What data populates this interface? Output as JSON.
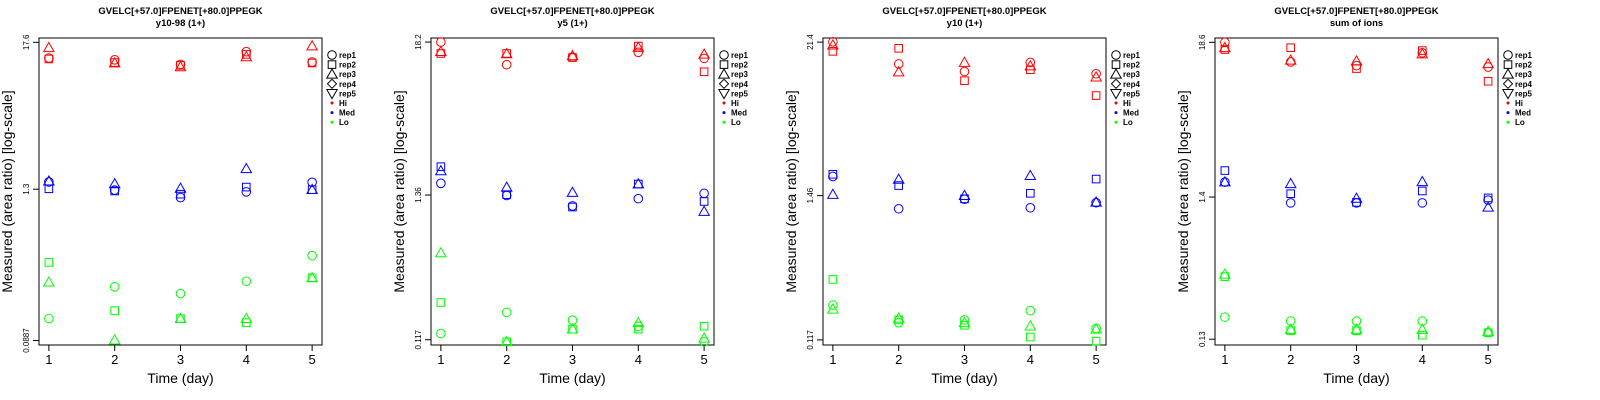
{
  "x_label": "Time (day)",
  "y_label": "Measured (area ratio) [log-scale]",
  "legend": {
    "shapes": [
      {
        "label": "rep1",
        "marker": "circle"
      },
      {
        "label": "rep2",
        "marker": "square"
      },
      {
        "label": "rep3",
        "marker": "triangle-up"
      },
      {
        "label": "rep4",
        "marker": "diamond"
      },
      {
        "label": "rep5",
        "marker": "triangle-down"
      }
    ],
    "levels": [
      {
        "label": "Hi",
        "color": "#ff0000"
      },
      {
        "label": "Med",
        "color": "#0000ff"
      },
      {
        "label": "Lo",
        "color": "#00ff00"
      }
    ]
  },
  "chart_data": [
    {
      "type": "scatter",
      "title": "GVELC[+57.0]FPENET[+80.0]PPEGK",
      "subtitle": "y10-98 (1+)",
      "xlabel": "Time (day)",
      "ylabel": "Measured (area ratio) [log-scale]",
      "x_ticks": [
        1,
        2,
        3,
        4,
        5
      ],
      "y_ticks": [
        {
          "value": 17.6,
          "label": "17.6"
        },
        {
          "value": 1.3,
          "label": "1.3"
        },
        {
          "value": 0.0887,
          "label": "0.0887"
        }
      ],
      "ylim": [
        0.082,
        19.0
      ],
      "xlim": [
        0.85,
        5.15
      ],
      "series": [
        {
          "name": "Hi rep1",
          "level": "Hi",
          "marker": "circle",
          "x": [
            1,
            2,
            3,
            4,
            5
          ],
          "y": [
            13.3,
            12.9,
            11.9,
            14.9,
            12.4
          ]
        },
        {
          "name": "Hi rep2",
          "level": "Hi",
          "marker": "square",
          "x": [
            1,
            2,
            3,
            4,
            5
          ],
          "y": [
            13.1,
            12.3,
            11.7,
            14.2,
            12.2
          ]
        },
        {
          "name": "Hi rep3",
          "level": "Hi",
          "marker": "triangle-up",
          "x": [
            1,
            2,
            3,
            4,
            5
          ],
          "y": [
            16.0,
            12.2,
            11.4,
            13.6,
            16.5
          ]
        },
        {
          "name": "Med rep1",
          "level": "Med",
          "marker": "circle",
          "x": [
            1,
            2,
            3,
            4,
            5
          ],
          "y": [
            1.48,
            1.28,
            1.12,
            1.24,
            1.47
          ]
        },
        {
          "name": "Med rep2",
          "level": "Med",
          "marker": "square",
          "x": [
            1,
            2,
            3,
            4,
            5
          ],
          "y": [
            1.31,
            1.26,
            1.19,
            1.35,
            1.29
          ]
        },
        {
          "name": "Med rep3",
          "level": "Med",
          "marker": "triangle-up",
          "x": [
            1,
            2,
            3,
            4,
            5
          ],
          "y": [
            1.5,
            1.43,
            1.32,
            1.87,
            1.29
          ]
        },
        {
          "name": "Lo rep1",
          "level": "Lo",
          "marker": "circle",
          "x": [
            1,
            2,
            3,
            4,
            5
          ],
          "y": [
            0.131,
            0.23,
            0.204,
            0.254,
            0.4
          ]
        },
        {
          "name": "Lo rep2",
          "level": "Lo",
          "marker": "square",
          "x": [
            1,
            2,
            3,
            4,
            5
          ],
          "y": [
            0.355,
            0.151,
            0.131,
            0.122,
            0.27
          ]
        },
        {
          "name": "Lo rep3",
          "level": "Lo",
          "marker": "triangle-up",
          "x": [
            1,
            2,
            3,
            4,
            5
          ],
          "y": [
            0.25,
            0.0895,
            0.131,
            0.131,
            0.27
          ]
        }
      ]
    },
    {
      "type": "scatter",
      "title": "GVELC[+57.0]FPENET[+80.0]PPEGK",
      "subtitle": "y5 (1+)",
      "xlabel": "Time (day)",
      "ylabel": "Measured (area ratio) [log-scale]",
      "x_ticks": [
        1,
        2,
        3,
        4,
        5
      ],
      "y_ticks": [
        {
          "value": 18.2,
          "label": "18.2"
        },
        {
          "value": 1.36,
          "label": "1.36"
        },
        {
          "value": 0.117,
          "label": "0.117"
        }
      ],
      "ylim": [
        0.107,
        19.5
      ],
      "xlim": [
        0.85,
        5.15
      ],
      "series": [
        {
          "name": "Hi rep1",
          "level": "Hi",
          "marker": "circle",
          "x": [
            1,
            2,
            3,
            4,
            5
          ],
          "y": [
            18.2,
            12.4,
            14.1,
            15.3,
            13.8
          ]
        },
        {
          "name": "Hi rep2",
          "level": "Hi",
          "marker": "square",
          "x": [
            1,
            2,
            3,
            4,
            5
          ],
          "y": [
            15.0,
            15.0,
            14.0,
            17.0,
            11.0
          ]
        },
        {
          "name": "Hi rep3",
          "level": "Hi",
          "marker": "triangle-up",
          "x": [
            1,
            2,
            3,
            4,
            5
          ],
          "y": [
            15.5,
            14.9,
            14.4,
            16.6,
            14.8
          ]
        },
        {
          "name": "Med rep1",
          "level": "Med",
          "marker": "circle",
          "x": [
            1,
            2,
            3,
            4,
            5
          ],
          "y": [
            1.66,
            1.35,
            1.13,
            1.28,
            1.4
          ]
        },
        {
          "name": "Med rep2",
          "level": "Med",
          "marker": "square",
          "x": [
            1,
            2,
            3,
            4,
            5
          ],
          "y": [
            2.2,
            1.37,
            1.11,
            1.64,
            1.22
          ]
        },
        {
          "name": "Med rep3",
          "level": "Med",
          "marker": "triangle-up",
          "x": [
            1,
            2,
            3,
            4,
            5
          ],
          "y": [
            2.05,
            1.55,
            1.42,
            1.64,
            1.03
          ]
        },
        {
          "name": "Lo rep1",
          "level": "Lo",
          "marker": "circle",
          "x": [
            1,
            2,
            3,
            4,
            5
          ],
          "y": [
            0.13,
            0.186,
            0.163,
            0.147,
            0.113
          ]
        },
        {
          "name": "Lo rep2",
          "level": "Lo",
          "marker": "square",
          "x": [
            1,
            2,
            3,
            4,
            5
          ],
          "y": [
            0.22,
            0.113,
            0.14,
            0.14,
            0.147
          ]
        },
        {
          "name": "Lo rep3",
          "level": "Lo",
          "marker": "triangle-up",
          "x": [
            1,
            2,
            3,
            4,
            5
          ],
          "y": [
            0.51,
            0.113,
            0.14,
            0.156,
            0.12
          ]
        }
      ]
    },
    {
      "type": "scatter",
      "title": "GVELC[+57.0]FPENET[+80.0]PPEGK",
      "subtitle": "y10 (1+)",
      "xlabel": "Time (day)",
      "ylabel": "Measured (area ratio) [log-scale]",
      "x_ticks": [
        1,
        2,
        3,
        4,
        5
      ],
      "y_ticks": [
        {
          "value": 21.4,
          "label": "21.4"
        },
        {
          "value": 1.46,
          "label": "1.46"
        },
        {
          "value": 0.117,
          "label": "0.117"
        }
      ],
      "ylim": [
        0.107,
        23.0
      ],
      "xlim": [
        0.85,
        5.15
      ],
      "series": [
        {
          "name": "Hi rep1",
          "level": "Hi",
          "marker": "circle",
          "x": [
            1,
            2,
            3,
            4,
            5
          ],
          "y": [
            21.5,
            14.6,
            12.8,
            15.0,
            12.3
          ]
        },
        {
          "name": "Hi rep2",
          "level": "Hi",
          "marker": "square",
          "x": [
            1,
            2,
            3,
            4,
            5
          ],
          "y": [
            18.2,
            19.2,
            10.9,
            13.2,
            8.4
          ]
        },
        {
          "name": "Hi rep3",
          "level": "Hi",
          "marker": "triangle-up",
          "x": [
            1,
            2,
            3,
            4,
            5
          ],
          "y": [
            20.3,
            12.7,
            15.0,
            14.1,
            11.6
          ]
        },
        {
          "name": "Med rep1",
          "level": "Med",
          "marker": "circle",
          "x": [
            1,
            2,
            3,
            4,
            5
          ],
          "y": [
            2.04,
            1.16,
            1.37,
            1.18,
            1.29
          ]
        },
        {
          "name": "Med rep2",
          "level": "Med",
          "marker": "square",
          "x": [
            1,
            2,
            3,
            4,
            5
          ],
          "y": [
            2.12,
            1.74,
            1.38,
            1.52,
            1.95
          ]
        },
        {
          "name": "Med rep3",
          "level": "Med",
          "marker": "triangle-up",
          "x": [
            1,
            2,
            3,
            4,
            5
          ],
          "y": [
            1.49,
            1.94,
            1.46,
            2.07,
            1.3
          ]
        },
        {
          "name": "Lo rep1",
          "level": "Lo",
          "marker": "circle",
          "x": [
            1,
            2,
            3,
            4,
            5
          ],
          "y": [
            0.215,
            0.158,
            0.166,
            0.195,
            0.143
          ]
        },
        {
          "name": "Lo rep2",
          "level": "Lo",
          "marker": "square",
          "x": [
            1,
            2,
            3,
            4,
            5
          ],
          "y": [
            0.337,
            0.166,
            0.151,
            0.123,
            0.114
          ]
        },
        {
          "name": "Lo rep3",
          "level": "Lo",
          "marker": "triangle-up",
          "x": [
            1,
            2,
            3,
            4,
            5
          ],
          "y": [
            0.2,
            0.171,
            0.158,
            0.149,
            0.141
          ]
        }
      ]
    },
    {
      "type": "scatter",
      "title": "GVELC[+57.0]FPENET[+80.0]PPEGK",
      "subtitle": "sum of ions",
      "xlabel": "Time (day)",
      "ylabel": "Measured (area ratio) [log-scale]",
      "x_ticks": [
        1,
        2,
        3,
        4,
        5
      ],
      "y_ticks": [
        {
          "value": 18.6,
          "label": "18.6"
        },
        {
          "value": 1.4,
          "label": "1.4"
        },
        {
          "value": 0.13,
          "label": "0.13"
        }
      ],
      "ylim": [
        0.118,
        20.0
      ],
      "xlim": [
        0.85,
        5.15
      ],
      "series": [
        {
          "name": "Hi rep1",
          "level": "Hi",
          "marker": "circle",
          "x": [
            1,
            2,
            3,
            4,
            5
          ],
          "y": [
            18.6,
            13.4,
            12.6,
            15.6,
            12.3
          ]
        },
        {
          "name": "Hi rep2",
          "level": "Hi",
          "marker": "square",
          "x": [
            1,
            2,
            3,
            4,
            5
          ],
          "y": [
            16.5,
            17.0,
            12.0,
            16.2,
            9.7
          ]
        },
        {
          "name": "Hi rep3",
          "level": "Hi",
          "marker": "triangle-up",
          "x": [
            1,
            2,
            3,
            4,
            5
          ],
          "y": [
            17.0,
            13.8,
            13.6,
            15.3,
            13.0
          ]
        },
        {
          "name": "Med rep1",
          "level": "Med",
          "marker": "circle",
          "x": [
            1,
            2,
            3,
            4,
            5
          ],
          "y": [
            1.8,
            1.27,
            1.27,
            1.27,
            1.33
          ]
        },
        {
          "name": "Med rep2",
          "level": "Med",
          "marker": "square",
          "x": [
            1,
            2,
            3,
            4,
            5
          ],
          "y": [
            2.18,
            1.48,
            1.28,
            1.55,
            1.38
          ]
        },
        {
          "name": "Med rep3",
          "level": "Med",
          "marker": "triangle-up",
          "x": [
            1,
            2,
            3,
            4,
            5
          ],
          "y": [
            1.8,
            1.75,
            1.37,
            1.81,
            1.18
          ]
        },
        {
          "name": "Lo rep1",
          "level": "Lo",
          "marker": "circle",
          "x": [
            1,
            2,
            3,
            4,
            5
          ],
          "y": [
            0.188,
            0.176,
            0.176,
            0.176,
            0.145
          ]
        },
        {
          "name": "Lo rep2",
          "level": "Lo",
          "marker": "square",
          "x": [
            1,
            2,
            3,
            4,
            5
          ],
          "y": [
            0.37,
            0.15,
            0.15,
            0.139,
            0.145
          ]
        },
        {
          "name": "Lo rep3",
          "level": "Lo",
          "marker": "triangle-up",
          "x": [
            1,
            2,
            3,
            4,
            5
          ],
          "y": [
            0.385,
            0.153,
            0.153,
            0.153,
            0.148
          ]
        }
      ]
    }
  ]
}
